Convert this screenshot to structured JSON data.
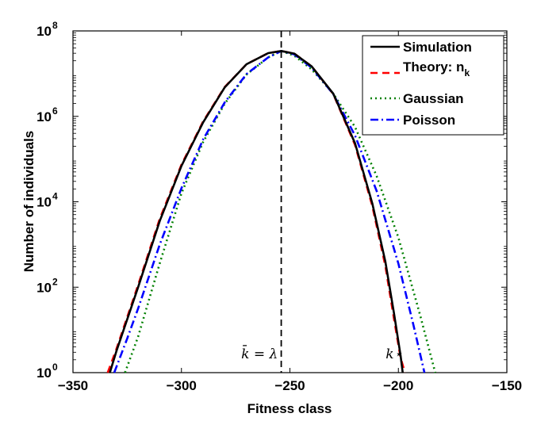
{
  "chart_data": {
    "type": "line",
    "title": "",
    "xlabel": "Fitness class",
    "ylabel": "Number of individuals",
    "xlim": [
      -350,
      -150
    ],
    "ylim_log10": [
      0,
      8
    ],
    "yscale": "log",
    "xticks": [
      -350,
      -300,
      -250,
      -200,
      -150
    ],
    "xtick_labels": [
      "−350",
      "−300",
      "−250",
      "−200",
      "−150"
    ],
    "yticks_log10": [
      0,
      2,
      4,
      6,
      8
    ],
    "ytick_base": "10",
    "ytick_exponents": [
      "0",
      "2",
      "4",
      "6",
      "8"
    ],
    "legend": {
      "position": "top-right",
      "entries": [
        {
          "name": "Simulation",
          "sub": "",
          "color": "#000000",
          "dash": "solid"
        },
        {
          "name": "Theory: n",
          "sub": "k",
          "color": "#ff0000",
          "dash": "dashed"
        },
        {
          "name": "Gaussian",
          "sub": "",
          "color": "#008000",
          "dash": "dotted"
        },
        {
          "name": "Poisson",
          "sub": "",
          "color": "#0000ff",
          "dash": "dashdot"
        }
      ]
    },
    "vline": {
      "x": -254,
      "style": "dashed",
      "color": "#000000"
    },
    "annotations": [
      {
        "text": "k̄ = λ",
        "x": -264,
        "y_log10": 0.3
      },
      {
        "text": "k⋆",
        "x": -202,
        "y_log10": 0.3
      }
    ],
    "series": [
      {
        "name": "Simulation",
        "color": "#000000",
        "dash": "solid",
        "x": [
          -333,
          -330,
          -320,
          -310,
          -300,
          -290,
          -280,
          -270,
          -260,
          -254,
          -248,
          -240,
          -230,
          -220,
          -212,
          -206,
          -202,
          -199,
          -198
        ],
        "y_log10": [
          0.0,
          0.5,
          2.0,
          3.55,
          4.84,
          5.86,
          6.68,
          7.22,
          7.48,
          7.53,
          7.47,
          7.17,
          6.53,
          5.37,
          3.96,
          2.6,
          1.38,
          0.4,
          0.0
        ]
      },
      {
        "name": "Theory: n_k",
        "color": "#ff0000",
        "dash": "dashed",
        "x": [
          -334,
          -330,
          -320,
          -310,
          -300,
          -290,
          -280,
          -270,
          -260,
          -254,
          -248,
          -240,
          -230,
          -220,
          -212,
          -206,
          -202,
          -199,
          -197
        ],
        "y_log10": [
          0.0,
          0.55,
          2.05,
          3.6,
          4.87,
          5.88,
          6.69,
          7.22,
          7.48,
          7.53,
          7.47,
          7.17,
          6.52,
          5.33,
          3.9,
          2.5,
          1.25,
          0.35,
          0.0
        ]
      },
      {
        "name": "Gaussian",
        "color": "#008000",
        "dash": "dotted",
        "x": [
          -326,
          -320,
          -310,
          -300,
          -290,
          -280,
          -270,
          -260,
          -254,
          -248,
          -240,
          -230,
          -220,
          -210,
          -200,
          -190,
          -183
        ],
        "y_log10": [
          0.0,
          0.84,
          2.56,
          4.2,
          5.4,
          6.3,
          6.98,
          7.38,
          7.53,
          7.42,
          7.1,
          6.53,
          5.75,
          4.6,
          3.16,
          1.35,
          0.0
        ]
      },
      {
        "name": "Poisson",
        "color": "#0000ff",
        "dash": "dashdot",
        "x": [
          -331,
          -325,
          -320,
          -310,
          -300,
          -290,
          -280,
          -270,
          -260,
          -254,
          -248,
          -240,
          -230,
          -220,
          -210,
          -200,
          -193,
          -188
        ],
        "y_log10": [
          0.0,
          0.8,
          1.5,
          3.0,
          4.32,
          5.46,
          6.33,
          6.99,
          7.38,
          7.53,
          7.45,
          7.14,
          6.52,
          5.55,
          4.25,
          2.55,
          1.1,
          0.0
        ]
      }
    ]
  }
}
